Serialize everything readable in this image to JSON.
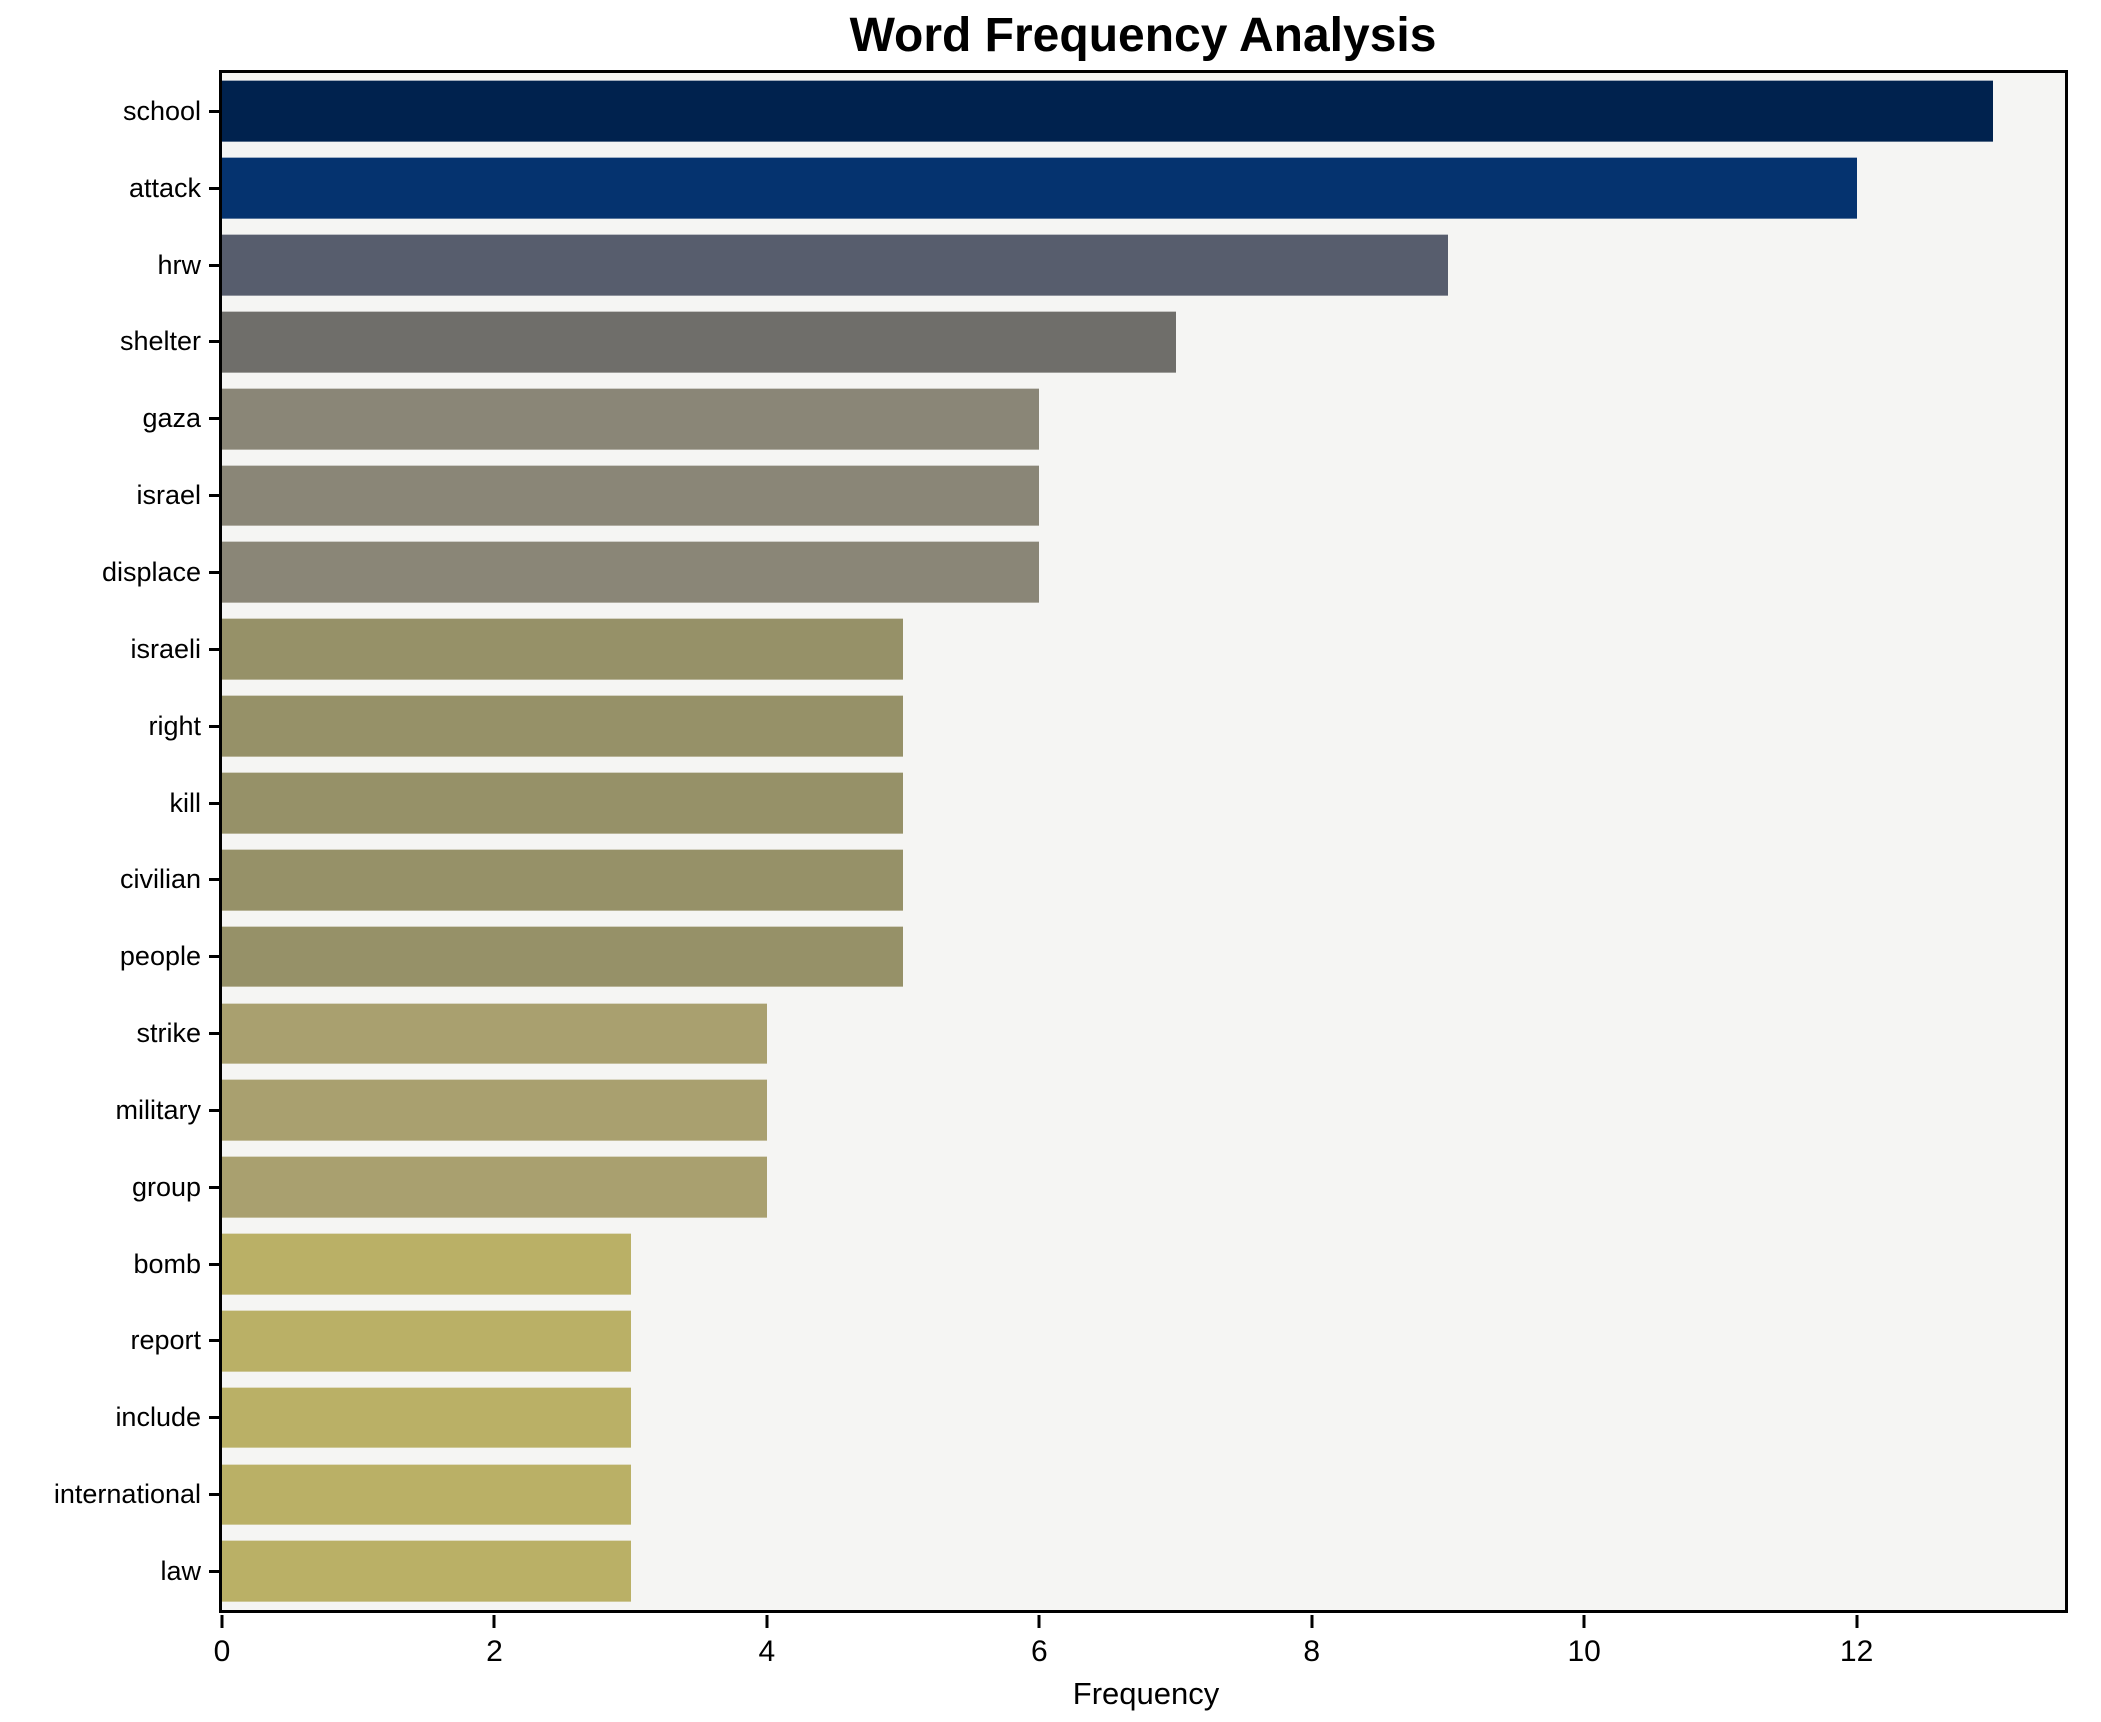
{
  "title": "Word Frequency Analysis",
  "chart_data": {
    "type": "bar",
    "orientation": "horizontal",
    "title": "Word Frequency Analysis",
    "xlabel": "Frequency",
    "ylabel": "",
    "categories": [
      "school",
      "attack",
      "hrw",
      "shelter",
      "gaza",
      "israel",
      "displace",
      "israeli",
      "right",
      "kill",
      "civilian",
      "people",
      "strike",
      "military",
      "group",
      "bomb",
      "report",
      "include",
      "international",
      "law"
    ],
    "values": [
      13,
      12,
      9,
      7,
      6,
      6,
      6,
      5,
      5,
      5,
      5,
      5,
      4,
      4,
      4,
      3,
      3,
      3,
      3,
      3
    ],
    "bar_colors": [
      "#00224e",
      "#05336f",
      "#575d6d",
      "#6f6e6a",
      "#8a8677",
      "#8a8677",
      "#8a8677",
      "#969168",
      "#969168",
      "#969168",
      "#969168",
      "#969168",
      "#a9a06f",
      "#a9a06f",
      "#a9a06f",
      "#bab066",
      "#bab066",
      "#bab066",
      "#bab066",
      "#bab066"
    ],
    "xlim": [
      0,
      13.53
    ],
    "xticks": [
      0,
      2,
      4,
      6,
      8,
      10,
      12
    ],
    "grid": false,
    "legend_position": "none",
    "colormap": "cividis",
    "plot_bg": "#f5f5f3",
    "figure_bg": "#ffffff",
    "spine_color": "#000000",
    "text_color": "#000000"
  }
}
